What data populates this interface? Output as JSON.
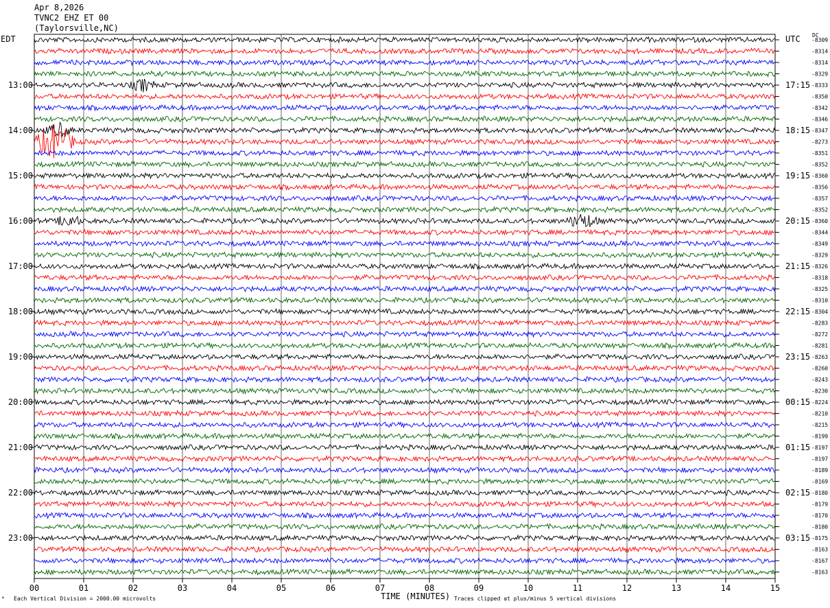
{
  "header": {
    "date": "Apr 8,2026",
    "station": "TVNC2 EHZ ET 00",
    "location": "(Taylorsville,NC)"
  },
  "left_axis_title": "EDT",
  "right_axis_title": "UTC",
  "dc_title": "DC",
  "footer": {
    "scale": "Each Vertical Division = 2000.00 microvolts",
    "xlabel": "TIME (MINUTES)",
    "clip": "Traces clipped at plus/minus 5 vertical divisions"
  },
  "chart_data": {
    "type": "line",
    "subtype": "helicorder seismogram",
    "x_ticks": [
      "00",
      "01",
      "02",
      "03",
      "04",
      "05",
      "06",
      "07",
      "08",
      "09",
      "10",
      "11",
      "12",
      "13",
      "14",
      "15"
    ],
    "xlim": [
      0,
      15
    ],
    "rows": 48,
    "trace_colors": [
      "#000000",
      "#ff0000",
      "#0000ff",
      "#006400"
    ],
    "left_labels": [
      {
        "row": 4,
        "text": "13:00"
      },
      {
        "row": 8,
        "text": "14:00"
      },
      {
        "row": 12,
        "text": "15:00"
      },
      {
        "row": 16,
        "text": "16:00"
      },
      {
        "row": 20,
        "text": "17:00"
      },
      {
        "row": 24,
        "text": "18:00"
      },
      {
        "row": 28,
        "text": "19:00"
      },
      {
        "row": 32,
        "text": "20:00"
      },
      {
        "row": 36,
        "text": "21:00"
      },
      {
        "row": 40,
        "text": "22:00"
      },
      {
        "row": 44,
        "text": "23:00"
      }
    ],
    "right_labels": [
      {
        "row": 4,
        "text": "17:15"
      },
      {
        "row": 8,
        "text": "18:15"
      },
      {
        "row": 12,
        "text": "19:15"
      },
      {
        "row": 16,
        "text": "20:15"
      },
      {
        "row": 20,
        "text": "21:15"
      },
      {
        "row": 24,
        "text": "22:15"
      },
      {
        "row": 28,
        "text": "23:15"
      },
      {
        "row": 32,
        "text": "00:15"
      },
      {
        "row": 36,
        "text": "01:15"
      },
      {
        "row": 40,
        "text": "02:15"
      },
      {
        "row": 44,
        "text": "03:15"
      }
    ],
    "dc_offsets": [
      "-8309",
      "-8314",
      "-8314",
      "-8329",
      "-8333",
      "-8350",
      "-8342",
      "-8346",
      "-8347",
      "-8273",
      "-8351",
      "-8352",
      "-8360",
      "-8356",
      "-8357",
      "-8352",
      "-8360",
      "-8344",
      "-8349",
      "-8329",
      "-8326",
      "-8318",
      "-8325",
      "-8310",
      "-8304",
      "-8283",
      "-8272",
      "-8281",
      "-8263",
      "-8260",
      "-8243",
      "-8230",
      "-8224",
      "-8210",
      "-8215",
      "-8199",
      "-8197",
      "-8197",
      "-8189",
      "-8169",
      "-8180",
      "-8179",
      "-8170",
      "-8180",
      "-8175",
      "-8163",
      "-8167",
      "-8163"
    ],
    "events": [
      {
        "row": 9,
        "minute": 0.4,
        "amplitude": 3.0,
        "duration_min": 0.5
      },
      {
        "row": 8,
        "minute": 0.5,
        "amplitude": 1.2,
        "duration_min": 0.3
      },
      {
        "row": 4,
        "minute": 2.2,
        "amplitude": 1.0,
        "duration_min": 0.3
      },
      {
        "row": 16,
        "minute": 0.7,
        "amplitude": 1.0,
        "duration_min": 0.3
      },
      {
        "row": 16,
        "minute": 11.1,
        "amplitude": 1.2,
        "duration_min": 0.4
      }
    ]
  }
}
